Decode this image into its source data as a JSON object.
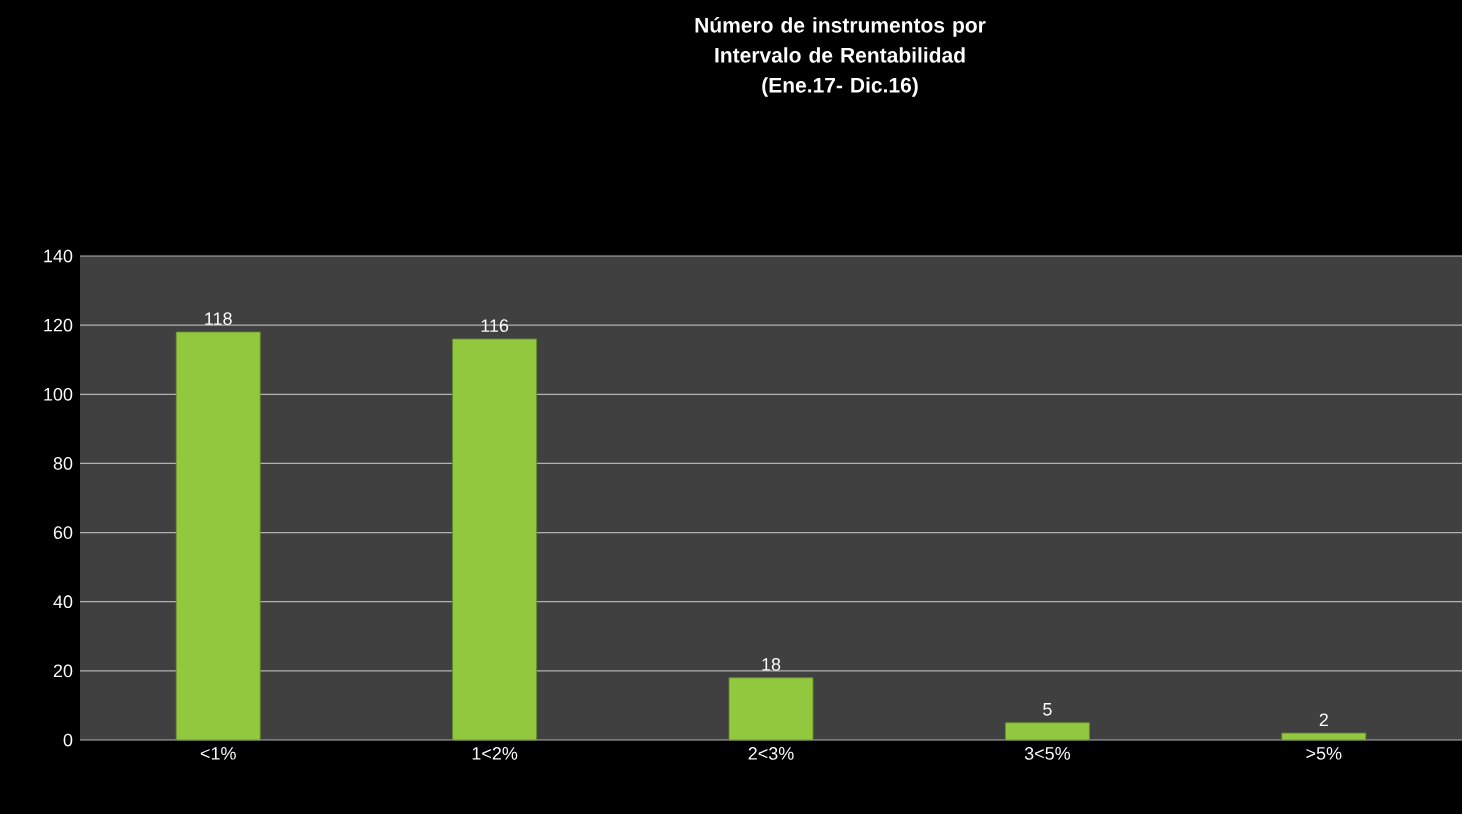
{
  "chart_data": {
    "type": "bar",
    "title": "Número de instrumentos por Intervalo de Rentabilidad",
    "subtitle": "(Ene.17- Dic.16)",
    "categories": [
      "<1%",
      "1<2%",
      "2<3%",
      "3<5%",
      ">5%"
    ],
    "values": [
      118,
      116,
      18,
      5,
      2
    ],
    "color": "#92c83e",
    "ylim": [
      0,
      140
    ],
    "yticks": [
      0,
      20,
      40,
      60,
      80,
      100,
      120,
      140
    ],
    "grid": "y",
    "data_labels": true
  }
}
